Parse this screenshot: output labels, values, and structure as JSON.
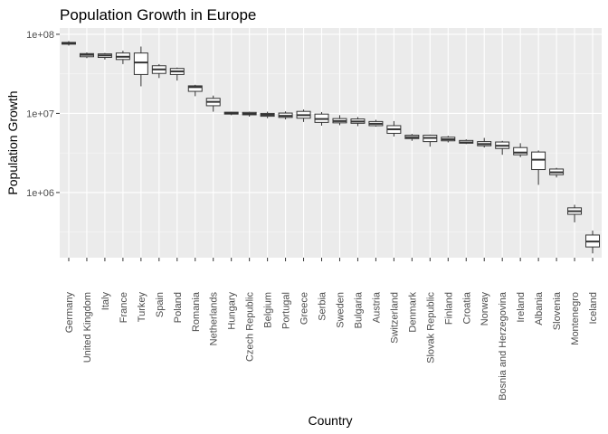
{
  "chart_data": {
    "type": "box",
    "title": "Population Growth in Europe",
    "xlabel": "Country",
    "ylabel": "Population Growth",
    "yscale": "log10",
    "ylim": [
      150000,
      120000000
    ],
    "yticks": [
      {
        "value": 1000000,
        "label": "1e+06"
      },
      {
        "value": 10000000,
        "label": "1e+07"
      },
      {
        "value": 100000000,
        "label": "1e+08"
      }
    ],
    "grid": true,
    "categories": [
      "Germany",
      "United Kingdom",
      "Italy",
      "France",
      "Turkey",
      "Spain",
      "Poland",
      "Romania",
      "Netherlands",
      "Hungary",
      "Czech Republic",
      "Belgium",
      "Portugal",
      "Greece",
      "Serbia",
      "Sweden",
      "Bulgaria",
      "Austria",
      "Switzerland",
      "Denmark",
      "Slovak Republic",
      "Finland",
      "Croatia",
      "Norway",
      "Bosnia and Herzegovina",
      "Ireland",
      "Albania",
      "Slovenia",
      "Montenegro",
      "Iceland"
    ],
    "boxes": [
      {
        "min": 72000000,
        "q1": 75000000,
        "median": 77000000,
        "q3": 79000000,
        "max": 82000000
      },
      {
        "min": 50000000,
        "q1": 52000000,
        "median": 55000000,
        "q3": 57000000,
        "max": 59000000
      },
      {
        "min": 48000000,
        "q1": 51000000,
        "median": 54000000,
        "q3": 56500000,
        "max": 58000000
      },
      {
        "min": 42000000,
        "q1": 48000000,
        "median": 52000000,
        "q3": 58000000,
        "max": 62000000
      },
      {
        "min": 22000000,
        "q1": 31000000,
        "median": 44000000,
        "q3": 58000000,
        "max": 70000000
      },
      {
        "min": 28000000,
        "q1": 32000000,
        "median": 36000000,
        "q3": 40000000,
        "max": 42000000
      },
      {
        "min": 26000000,
        "q1": 31000000,
        "median": 34000000,
        "q3": 37000000,
        "max": 38000000
      },
      {
        "min": 16500000,
        "q1": 19000000,
        "median": 21500000,
        "q3": 22300000,
        "max": 23000000
      },
      {
        "min": 10500000,
        "q1": 12500000,
        "median": 14000000,
        "q3": 15500000,
        "max": 16800000
      },
      {
        "min": 9500000,
        "q1": 9800000,
        "median": 10100000,
        "q3": 10350000,
        "max": 10500000
      },
      {
        "min": 9100000,
        "q1": 9600000,
        "median": 9900000,
        "q3": 10300000,
        "max": 10500000
      },
      {
        "min": 8700000,
        "q1": 9200000,
        "median": 9600000,
        "q3": 10000000,
        "max": 10500000
      },
      {
        "min": 8400000,
        "q1": 8900000,
        "median": 9300000,
        "q3": 10100000,
        "max": 10600000
      },
      {
        "min": 7800000,
        "q1": 8700000,
        "median": 9500000,
        "q3": 10600000,
        "max": 11200000
      },
      {
        "min": 7000000,
        "q1": 7700000,
        "median": 8500000,
        "q3": 9800000,
        "max": 10400000
      },
      {
        "min": 7100000,
        "q1": 7600000,
        "median": 8000000,
        "q3": 8600000,
        "max": 9500000
      },
      {
        "min": 6900000,
        "q1": 7500000,
        "median": 7900000,
        "q3": 8500000,
        "max": 9000000
      },
      {
        "min": 6800000,
        "q1": 7000000,
        "median": 7400000,
        "q3": 7900000,
        "max": 8300000
      },
      {
        "min": 5100000,
        "q1": 5600000,
        "median": 6300000,
        "q3": 7000000,
        "max": 8000000
      },
      {
        "min": 4500000,
        "q1": 4800000,
        "median": 5000000,
        "q3": 5300000,
        "max": 5500000
      },
      {
        "min": 3800000,
        "q1": 4400000,
        "median": 4900000,
        "q3": 5300000,
        "max": 5400000
      },
      {
        "min": 4300000,
        "q1": 4500000,
        "median": 4700000,
        "q3": 5000000,
        "max": 5200000
      },
      {
        "min": 4100000,
        "q1": 4200000,
        "median": 4300000,
        "q3": 4550000,
        "max": 4700000
      },
      {
        "min": 3700000,
        "q1": 3900000,
        "median": 4100000,
        "q3": 4400000,
        "max": 4900000
      },
      {
        "min": 3000000,
        "q1": 3600000,
        "median": 3900000,
        "q3": 4350000,
        "max": 4500000
      },
      {
        "min": 2800000,
        "q1": 3000000,
        "median": 3200000,
        "q3": 3700000,
        "max": 4200000
      },
      {
        "min": 1250000,
        "q1": 1950000,
        "median": 2600000,
        "q3": 3250000,
        "max": 3400000
      },
      {
        "min": 1550000,
        "q1": 1680000,
        "median": 1800000,
        "q3": 1980000,
        "max": 2050000
      },
      {
        "min": 420000,
        "q1": 530000,
        "median": 580000,
        "q3": 640000,
        "max": 700000
      },
      {
        "min": 170000,
        "q1": 205000,
        "median": 240000,
        "q3": 290000,
        "max": 330000
      }
    ]
  }
}
